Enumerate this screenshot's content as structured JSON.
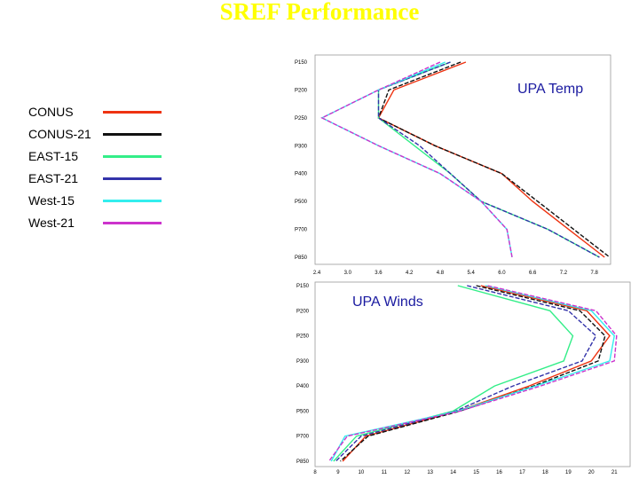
{
  "slide": {
    "title": "SREF Performance"
  },
  "legend": [
    {
      "name": "CONUS",
      "color": "#ee3311"
    },
    {
      "name": "CONUS-21",
      "color": "#111111"
    },
    {
      "name": "EAST-15",
      "color": "#33ee88"
    },
    {
      "name": "EAST-21",
      "color": "#3333aa"
    },
    {
      "name": "West-15",
      "color": "#33eeee"
    },
    {
      "name": "West-21",
      "color": "#cc33cc"
    }
  ],
  "chart_data": [
    {
      "type": "line",
      "title": "UPA Temp",
      "orientation": "profile",
      "levels": [
        "P150",
        "P200",
        "P250",
        "P300",
        "P400",
        "P500",
        "P700",
        "P850"
      ],
      "x_ticks": [
        "2.4",
        "3.0",
        "3.6",
        "4.2",
        "4.8",
        "5.4",
        "6.0",
        "6.6",
        "7.2",
        "7.8"
      ],
      "xlim": [
        2.4,
        8.1
      ],
      "series": [
        {
          "name": "CONUS",
          "values": [
            5.3,
            3.9,
            3.6,
            4.7,
            6.0,
            6.6,
            7.3,
            8.0
          ]
        },
        {
          "name": "CONUS-21",
          "values": [
            5.2,
            3.8,
            3.6,
            4.7,
            6.0,
            6.7,
            7.4,
            8.1
          ]
        },
        {
          "name": "EAST-15",
          "values": [
            5.0,
            3.6,
            3.6,
            4.3,
            5.0,
            5.6,
            6.9,
            7.9
          ]
        },
        {
          "name": "EAST-21",
          "values": [
            5.0,
            3.6,
            3.6,
            4.4,
            5.0,
            5.6,
            6.9,
            7.9
          ]
        },
        {
          "name": "West-15",
          "values": [
            4.9,
            3.6,
            2.5,
            3.6,
            4.8,
            5.6,
            6.1,
            6.2
          ]
        },
        {
          "name": "West-21",
          "values": [
            4.8,
            3.6,
            2.5,
            3.6,
            4.8,
            5.6,
            6.1,
            6.2
          ]
        }
      ]
    },
    {
      "type": "line",
      "title": "UPA Winds",
      "orientation": "profile",
      "levels": [
        "P150",
        "P200",
        "P250",
        "P300",
        "P400",
        "P500",
        "P700",
        "P850"
      ],
      "x_ticks": [
        "8",
        "9",
        "10",
        "11",
        "12",
        "13",
        "14",
        "15",
        "16",
        "17",
        "18",
        "19",
        "20",
        "21"
      ],
      "xlim": [
        8,
        21.3
      ],
      "series": [
        {
          "name": "CONUS",
          "values": [
            15.2,
            19.8,
            20.8,
            20.0,
            17.3,
            14.2,
            10.2,
            9.2
          ]
        },
        {
          "name": "CONUS-21",
          "values": [
            15.0,
            19.5,
            20.6,
            20.3,
            17.5,
            14.3,
            10.3,
            9.1
          ]
        },
        {
          "name": "EAST-15",
          "values": [
            14.2,
            18.2,
            19.2,
            18.8,
            15.8,
            14.0,
            9.8,
            8.8
          ]
        },
        {
          "name": "EAST-21",
          "values": [
            14.6,
            19.0,
            20.2,
            19.6,
            16.6,
            14.1,
            10.0,
            8.9
          ]
        },
        {
          "name": "West-15",
          "values": [
            15.4,
            20.0,
            21.0,
            20.8,
            17.6,
            14.2,
            9.3,
            8.7
          ]
        },
        {
          "name": "West-21",
          "values": [
            15.5,
            20.2,
            21.1,
            21.0,
            17.8,
            14.3,
            9.4,
            8.6
          ]
        }
      ]
    }
  ]
}
